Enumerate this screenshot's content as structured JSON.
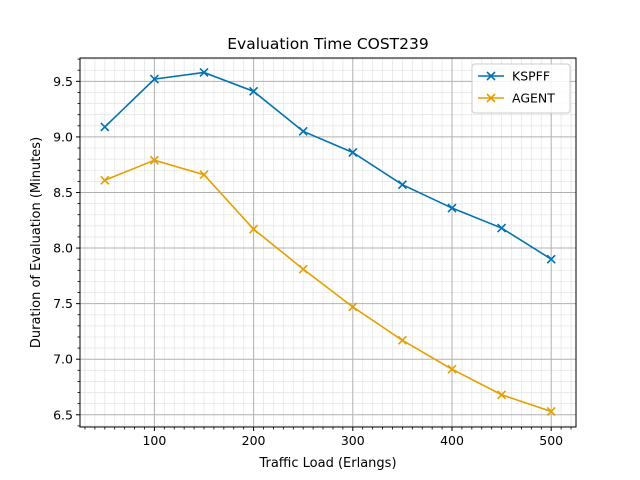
{
  "chart_data": {
    "type": "line",
    "title": "Evaluation Time COST239",
    "xlabel": "Traffic Load (Erlangs)",
    "ylabel": "Duration of Evaluation (Minutes)",
    "x": [
      50,
      100,
      150,
      200,
      250,
      300,
      350,
      400,
      450,
      500
    ],
    "xlim": [
      25,
      525
    ],
    "ylim": [
      6.39,
      9.71
    ],
    "xticks": [
      100,
      200,
      300,
      400,
      500
    ],
    "yticks": [
      6.5,
      7.0,
      7.5,
      8.0,
      8.5,
      9.0,
      9.5
    ],
    "xtick_labels": [
      "100",
      "200",
      "300",
      "400",
      "500"
    ],
    "ytick_labels": [
      "6.5",
      "7.0",
      "7.5",
      "8.0",
      "8.5",
      "9.0",
      "9.5"
    ],
    "grid": true,
    "minor_grid": true,
    "legend_position": "top-right",
    "series": [
      {
        "name": "KSPFF",
        "color": "#0072b2",
        "marker": "x",
        "values": [
          9.09,
          9.52,
          9.58,
          9.41,
          9.05,
          8.86,
          8.57,
          8.36,
          8.18,
          7.9
        ]
      },
      {
        "name": "AGENT",
        "color": "#e69f00",
        "marker": "x",
        "values": [
          8.61,
          8.79,
          8.66,
          8.17,
          7.81,
          7.47,
          7.17,
          6.91,
          6.68,
          6.53
        ]
      }
    ]
  }
}
